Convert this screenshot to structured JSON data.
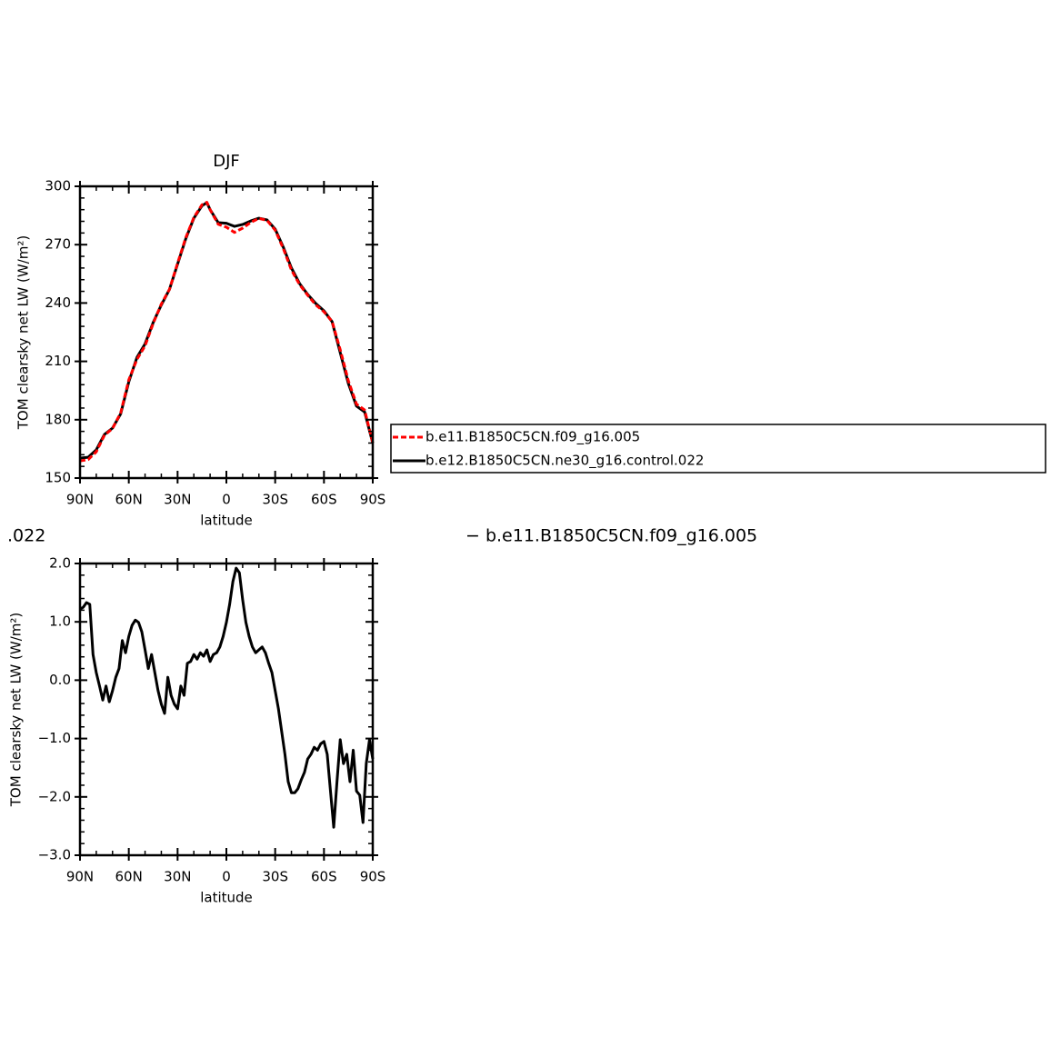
{
  "chart_data": [
    {
      "type": "line",
      "title": "DJF",
      "x_label": "latitude",
      "y_label": "TOM clearsky net LW (W/m²)",
      "xlim": [
        90,
        -90
      ],
      "xticks": [
        {
          "value": 90,
          "label": "90N"
        },
        {
          "value": 60,
          "label": "60N"
        },
        {
          "value": 30,
          "label": "30N"
        },
        0,
        {
          "value": -30,
          "label": "30S"
        },
        {
          "value": -60,
          "label": "60S"
        },
        {
          "value": -90,
          "label": "90S"
        }
      ],
      "ylim": [
        150,
        300
      ],
      "yticks": [
        150,
        180,
        210,
        240,
        270,
        300
      ],
      "legend": "right",
      "x": [
        90,
        85,
        80,
        75,
        70,
        65,
        60,
        55,
        50,
        45,
        40,
        35,
        30,
        25,
        20,
        15,
        12,
        10,
        5,
        0,
        -5,
        -10,
        -15,
        -20,
        -25,
        -30,
        -35,
        -40,
        -45,
        -50,
        -55,
        -60,
        -65,
        -70,
        -75,
        -80,
        -85,
        -90
      ],
      "series": [
        {
          "name": "b.e11.B1850C5CN.f09_g16.005",
          "color": "#ff0000",
          "dashed": true,
          "values": [
            158.8,
            159.5,
            163.5,
            172,
            175.5,
            183.5,
            200.5,
            211,
            218,
            229.5,
            239.5,
            247,
            260.5,
            273.5,
            284,
            290.5,
            291.8,
            288,
            280.5,
            279,
            276.3,
            278.5,
            281.5,
            283.5,
            282.5,
            277.5,
            268,
            257,
            249.5,
            244,
            239,
            235.5,
            230.5,
            216,
            200,
            188,
            185,
            168
          ]
        },
        {
          "name": "b.e12.B1850C5CN.ne30_g16.control.022",
          "color": "#000000",
          "dashed": false,
          "values": [
            160.3,
            160.7,
            164.5,
            172.4,
            175.7,
            183,
            199.5,
            212,
            219,
            230,
            239,
            247,
            260,
            273,
            283.6,
            290,
            291.6,
            288,
            281.3,
            281,
            279.4,
            280.4,
            282.2,
            283.6,
            282.7,
            278,
            268.7,
            258,
            250,
            244.4,
            239.7,
            236,
            230.4,
            214.5,
            198.6,
            187,
            184,
            168
          ]
        }
      ]
    },
    {
      "type": "line",
      "x_label": "latitude",
      "y_label": "TOM clearsky net LW (W/m²)",
      "annotations": [
        ".022",
        "− b.e11.B1850C5CN.f09_g16.005"
      ],
      "xlim": [
        90,
        -90
      ],
      "xticks": [
        {
          "value": 90,
          "label": "90N"
        },
        {
          "value": 60,
          "label": "60N"
        },
        {
          "value": 30,
          "label": "30N"
        },
        0,
        {
          "value": -30,
          "label": "30S"
        },
        {
          "value": -60,
          "label": "60S"
        },
        {
          "value": -90,
          "label": "90S"
        }
      ],
      "ylim": [
        -3,
        2
      ],
      "yticks": [
        {
          "value": -3,
          "label": "−3.0"
        },
        {
          "value": -2,
          "label": "−2.0"
        },
        {
          "value": -1,
          "label": "−1.0"
        },
        {
          "value": 0,
          "label": "0.0"
        },
        {
          "value": 1,
          "label": "1.0"
        },
        {
          "value": 2,
          "label": "2.0"
        }
      ],
      "x": [
        90,
        88,
        86,
        84,
        82,
        80,
        78,
        76,
        74,
        72,
        70,
        68,
        66,
        64,
        62,
        60,
        58,
        56,
        54,
        52,
        50,
        48,
        46,
        44,
        42,
        40,
        38,
        36,
        34,
        32,
        30,
        28,
        26,
        24,
        22,
        20,
        18,
        16,
        14,
        12,
        10,
        8,
        6,
        4,
        2,
        0,
        -2,
        -4,
        -6,
        -8,
        -10,
        -12,
        -14,
        -16,
        -18,
        -20,
        -22,
        -24,
        -26,
        -28,
        -30,
        -32,
        -34,
        -36,
        -38,
        -40,
        -42,
        -44,
        -46,
        -48,
        -50,
        -52,
        -54,
        -56,
        -58,
        -60,
        -62,
        -64,
        -66,
        -68,
        -70,
        -72,
        -74,
        -76,
        -78,
        -80,
        -82,
        -84,
        -86,
        -88,
        -90
      ],
      "series": [
        {
          "color": "#000000",
          "values": [
            1.22,
            1.25,
            1.33,
            1.3,
            0.44,
            0.13,
            -0.1,
            -0.34,
            -0.1,
            -0.37,
            -0.18,
            0.05,
            0.2,
            0.68,
            0.47,
            0.75,
            0.94,
            1.03,
            0.99,
            0.83,
            0.52,
            0.2,
            0.44,
            0.13,
            -0.18,
            -0.41,
            -0.57,
            0.05,
            -0.26,
            -0.41,
            -0.49,
            -0.1,
            -0.26,
            0.29,
            0.32,
            0.44,
            0.36,
            0.47,
            0.41,
            0.52,
            0.32,
            0.44,
            0.47,
            0.57,
            0.75,
            0.99,
            1.3,
            1.69,
            1.92,
            1.84,
            1.38,
            0.99,
            0.75,
            0.57,
            0.47,
            0.52,
            0.57,
            0.47,
            0.29,
            0.13,
            -0.18,
            -0.49,
            -0.88,
            -1.27,
            -1.74,
            -1.93,
            -1.93,
            -1.86,
            -1.71,
            -1.58,
            -1.35,
            -1.27,
            -1.15,
            -1.2,
            -1.09,
            -1.05,
            -1.27,
            -1.9,
            -2.52,
            -1.74,
            -1.02,
            -1.43,
            -1.27,
            -1.74,
            -1.2,
            -1.9,
            -1.97,
            -2.44,
            -1.43,
            -1.02,
            -1.35
          ]
        }
      ]
    }
  ]
}
